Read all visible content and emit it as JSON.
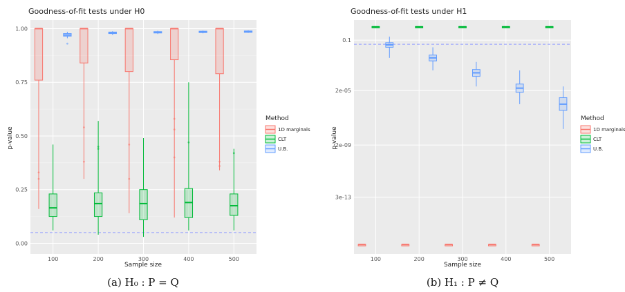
{
  "colors": {
    "marginals": "#F8766D",
    "clt": "#00BA38",
    "ub": "#619CFF",
    "panel": "#EBEBEB",
    "refline": "#8F9BFF"
  },
  "legend": {
    "title": "Method",
    "entries": [
      "1D marginals",
      "CLT",
      "U.B."
    ]
  },
  "captions": [
    "(a) H₀ : P = Q",
    "(b) H₁ : P ≠ Q"
  ],
  "chart_data": [
    {
      "type": "box",
      "title": "Goodness-of-fit tests under H0",
      "xlabel": "Sample size",
      "ylabel": "p-value",
      "categories": [
        "100",
        "200",
        "300",
        "400",
        "500"
      ],
      "ylim": [
        0,
        1
      ],
      "yticks": [
        "0.00",
        "0.25",
        "0.50",
        "0.75",
        "1.00"
      ],
      "reference_line": 0.05,
      "grid": true,
      "legend_position": "right",
      "series": [
        {
          "name": "1D marginals",
          "boxes": [
            {
              "min": 0.16,
              "q1": 0.76,
              "median": 1.0,
              "q3": 1.0,
              "max": 1.0,
              "outliers": [
                0.3,
                0.33
              ]
            },
            {
              "min": 0.3,
              "q1": 0.84,
              "median": 1.0,
              "q3": 1.0,
              "max": 1.0,
              "outliers": [
                0.38,
                0.54
              ]
            },
            {
              "min": 0.14,
              "q1": 0.8,
              "median": 1.0,
              "q3": 1.0,
              "max": 1.0,
              "outliers": [
                0.3,
                0.46
              ]
            },
            {
              "min": 0.12,
              "q1": 0.855,
              "median": 1.0,
              "q3": 1.0,
              "max": 1.0,
              "outliers": [
                0.4,
                0.53,
                0.58
              ]
            },
            {
              "min": 0.34,
              "q1": 0.79,
              "median": 1.0,
              "q3": 1.0,
              "max": 1.0,
              "outliers": [
                0.36,
                0.38
              ]
            }
          ]
        },
        {
          "name": "CLT",
          "boxes": [
            {
              "min": 0.06,
              "q1": 0.125,
              "median": 0.165,
              "q3": 0.23,
              "max": 0.46,
              "outliers": []
            },
            {
              "min": 0.04,
              "q1": 0.125,
              "median": 0.185,
              "q3": 0.235,
              "max": 0.57,
              "outliers": [
                0.44,
                0.45
              ]
            },
            {
              "min": 0.03,
              "q1": 0.11,
              "median": 0.185,
              "q3": 0.25,
              "max": 0.49,
              "outliers": []
            },
            {
              "min": 0.06,
              "q1": 0.12,
              "median": 0.19,
              "q3": 0.255,
              "max": 0.75,
              "outliers": [
                0.47
              ]
            },
            {
              "min": 0.06,
              "q1": 0.13,
              "median": 0.175,
              "q3": 0.23,
              "max": 0.44,
              "outliers": [
                0.42
              ]
            }
          ]
        },
        {
          "name": "U.B.",
          "boxes": [
            {
              "min": 0.955,
              "q1": 0.965,
              "median": 0.97,
              "q3": 0.977,
              "max": 0.985,
              "outliers": [
                0.93
              ]
            },
            {
              "min": 0.97,
              "q1": 0.977,
              "median": 0.98,
              "q3": 0.984,
              "max": 0.988,
              "outliers": []
            },
            {
              "min": 0.975,
              "q1": 0.98,
              "median": 0.983,
              "q3": 0.986,
              "max": 0.99,
              "outliers": []
            },
            {
              "min": 0.978,
              "q1": 0.982,
              "median": 0.985,
              "q3": 0.988,
              "max": 0.991,
              "outliers": []
            },
            {
              "min": 0.98,
              "q1": 0.984,
              "median": 0.987,
              "q3": 0.989,
              "max": 0.992,
              "outliers": []
            }
          ]
        }
      ]
    },
    {
      "type": "box",
      "title": "Goodness-of-fit tests under H1",
      "xlabel": "Sample size",
      "ylabel": "p-value",
      "categories": [
        "100",
        "200",
        "300",
        "400",
        "500"
      ],
      "yscale": "log",
      "yticks": [
        "0.1",
        "2e-05",
        "2e-09",
        "3e-13"
      ],
      "ytick_values": [
        0.1,
        2e-05,
        2e-09,
        3e-13
      ],
      "reference_line": 0.05,
      "grid": true,
      "legend_position": "right",
      "series": [
        {
          "name": "1D marginals",
          "boxes": [
            {
              "min": 1e-16,
              "q1": 1e-16,
              "median": 1e-16,
              "q3": 1e-16,
              "max": 1e-16,
              "outliers": []
            },
            {
              "min": 1e-16,
              "q1": 1e-16,
              "median": 1e-16,
              "q3": 1e-16,
              "max": 1e-16,
              "outliers": []
            },
            {
              "min": 1e-16,
              "q1": 1e-16,
              "median": 1e-16,
              "q3": 1e-16,
              "max": 1e-16,
              "outliers": []
            },
            {
              "min": 1e-16,
              "q1": 1e-16,
              "median": 1e-16,
              "q3": 1e-16,
              "max": 1e-16,
              "outliers": []
            },
            {
              "min": 1e-16,
              "q1": 1e-16,
              "median": 1e-16,
              "q3": 1e-16,
              "max": 1e-16,
              "outliers": []
            }
          ]
        },
        {
          "name": "CLT",
          "boxes": [
            {
              "min": 0.75,
              "q1": 0.85,
              "median": 0.95,
              "q3": 1.0,
              "max": 1.0,
              "outliers": []
            },
            {
              "min": 0.8,
              "q1": 0.9,
              "median": 0.95,
              "q3": 1.0,
              "max": 1.0,
              "outliers": []
            },
            {
              "min": 0.8,
              "q1": 0.9,
              "median": 0.95,
              "q3": 1.0,
              "max": 1.0,
              "outliers": []
            },
            {
              "min": 0.8,
              "q1": 0.9,
              "median": 0.95,
              "q3": 1.0,
              "max": 1.0,
              "outliers": []
            },
            {
              "min": 0.8,
              "q1": 0.9,
              "median": 0.95,
              "q3": 1.0,
              "max": 1.0,
              "outliers": []
            }
          ]
        },
        {
          "name": "U.B.",
          "boxes": [
            {
              "min": 0.005,
              "q1": 0.03,
              "median": 0.045,
              "q3": 0.065,
              "max": 0.18,
              "outliers": []
            },
            {
              "min": 0.0006,
              "q1": 0.003,
              "median": 0.005,
              "q3": 0.008,
              "max": 0.03,
              "outliers": []
            },
            {
              "min": 4e-05,
              "q1": 0.00022,
              "median": 0.0004,
              "q3": 0.0007,
              "max": 0.0025,
              "outliers": []
            },
            {
              "min": 2e-06,
              "q1": 1.5e-05,
              "median": 3e-05,
              "q3": 6e-05,
              "max": 0.0006,
              "outliers": []
            },
            {
              "min": 3e-08,
              "q1": 7e-07,
              "median": 2e-06,
              "q3": 6e-06,
              "max": 4e-05,
              "outliers": []
            }
          ]
        }
      ]
    }
  ]
}
